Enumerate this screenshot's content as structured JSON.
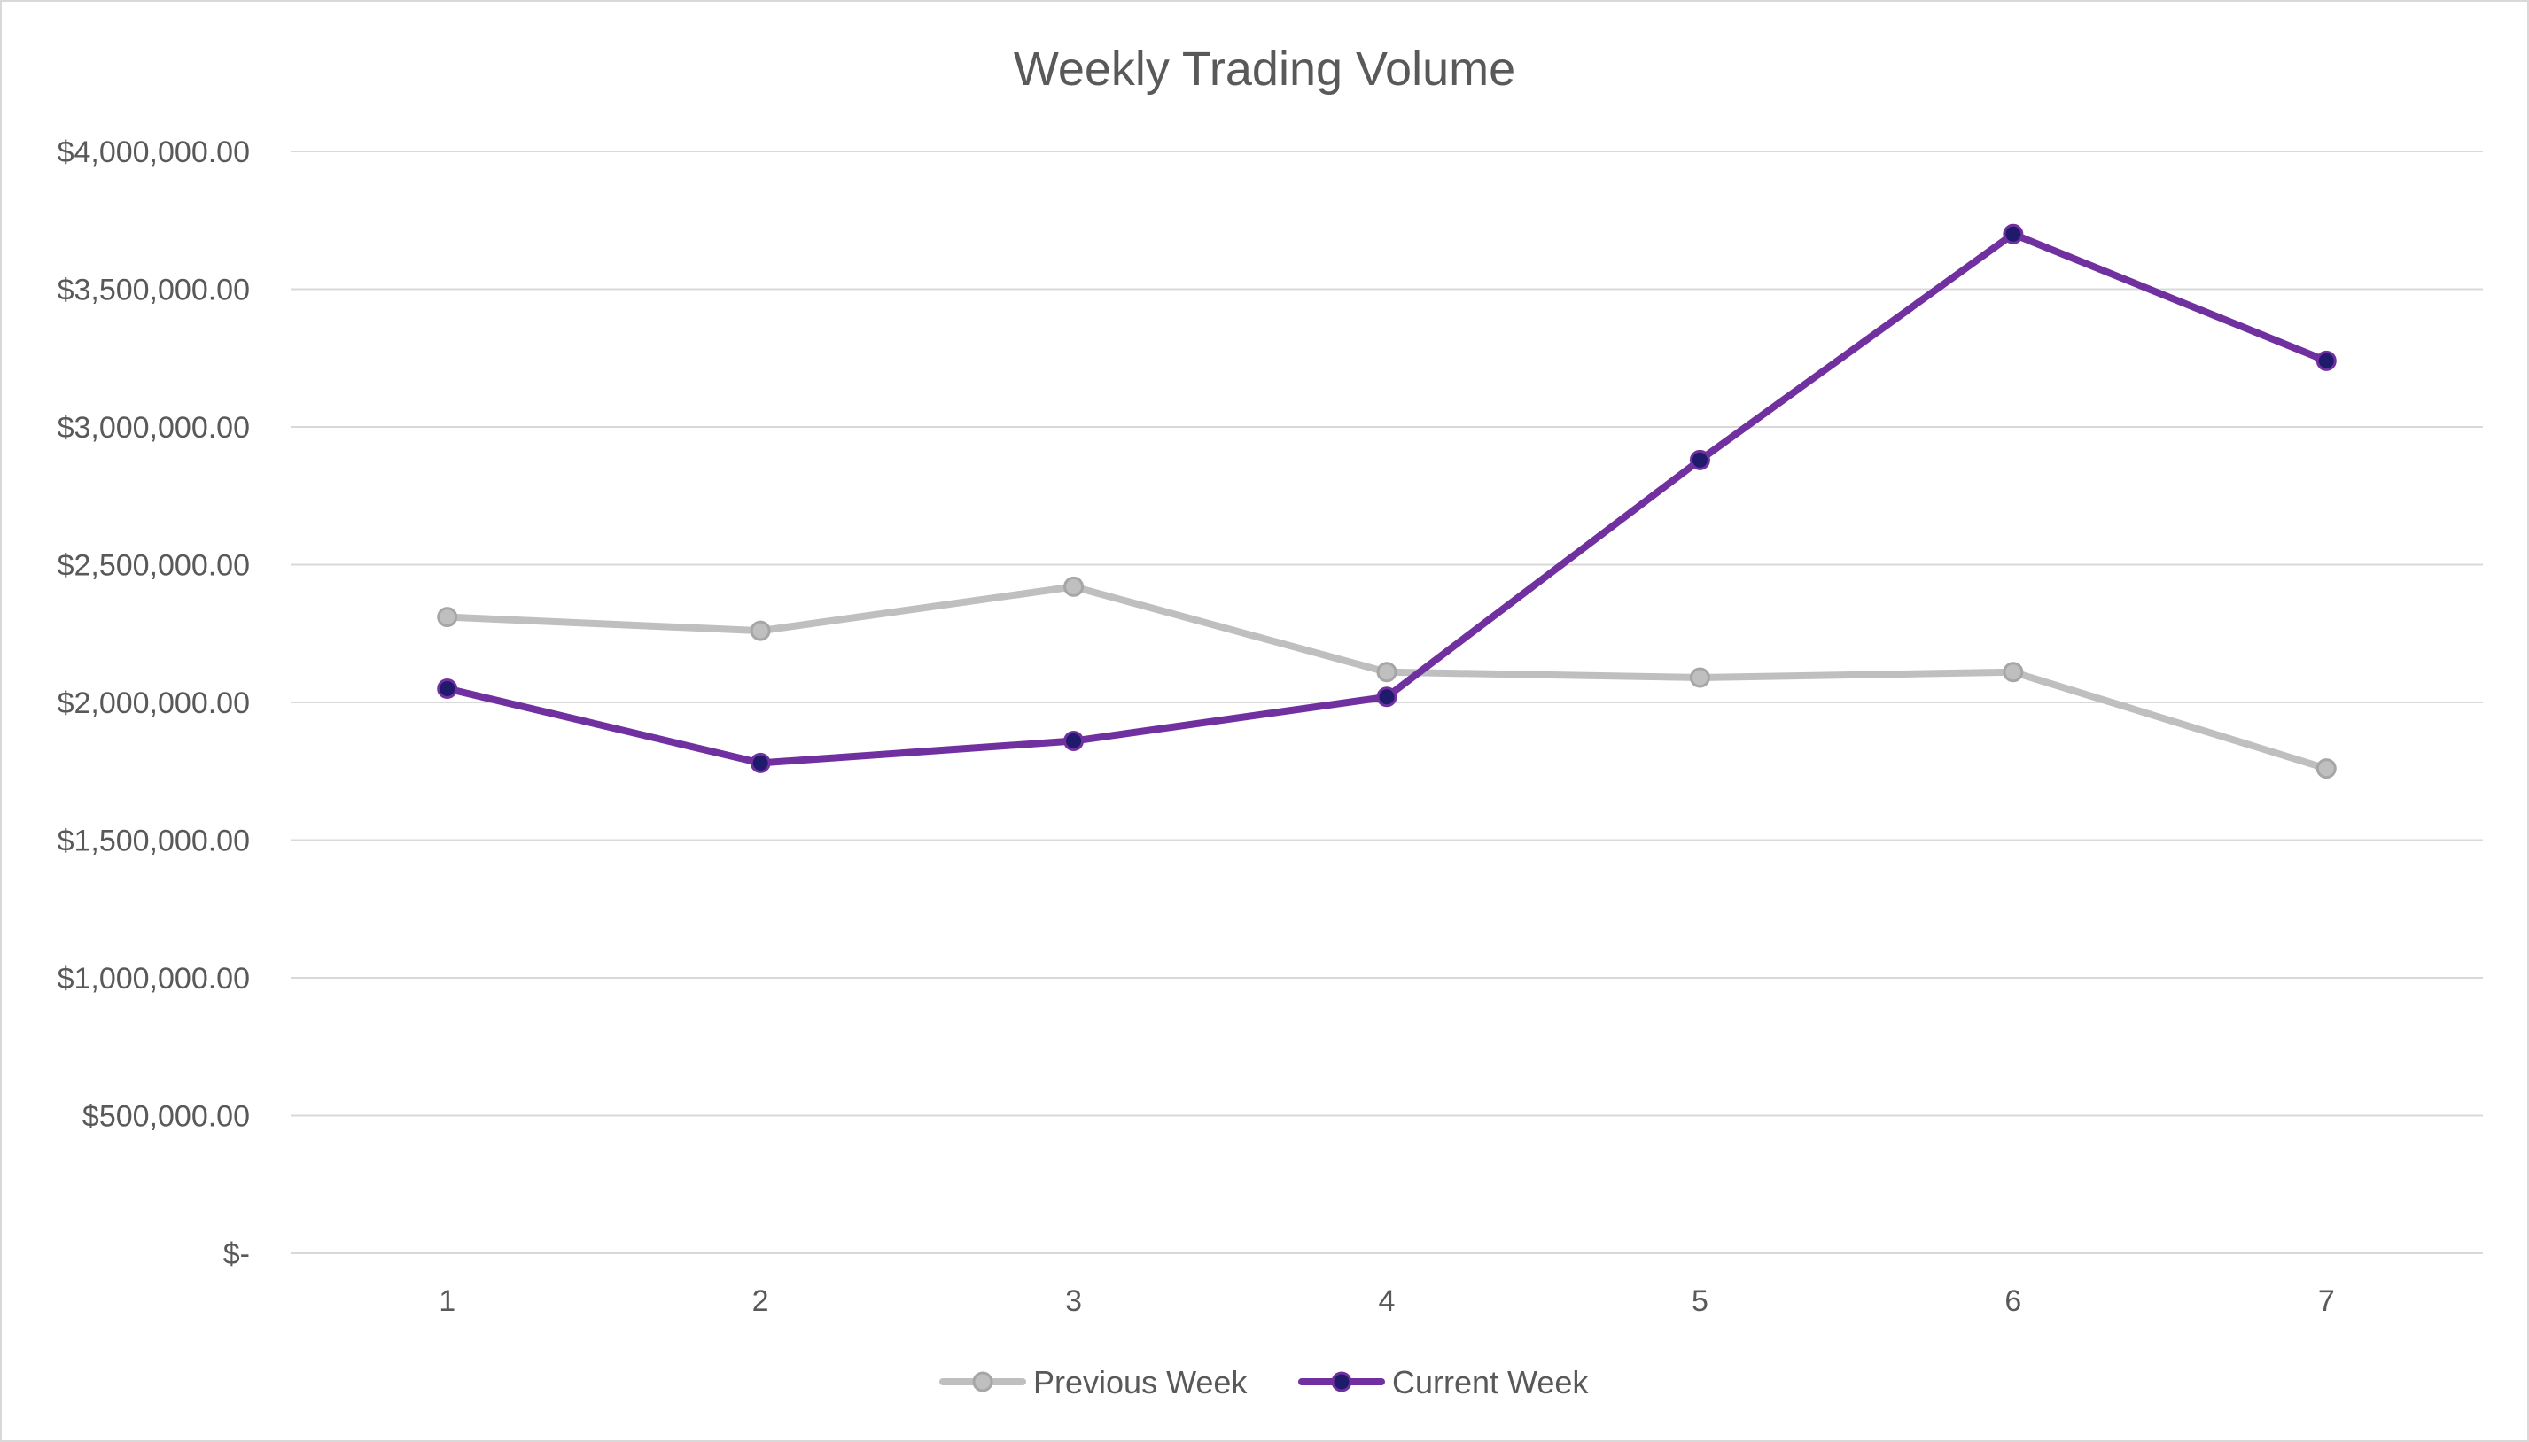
{
  "chart_data": {
    "type": "line",
    "title": "Weekly Trading Volume",
    "xlabel": "",
    "ylabel": "",
    "categories": [
      "1",
      "2",
      "3",
      "4",
      "5",
      "6",
      "7"
    ],
    "y_ticks": [
      0,
      500000,
      1000000,
      1500000,
      2000000,
      2500000,
      3000000,
      3500000,
      4000000
    ],
    "y_tick_labels": [
      "$-",
      "$500,000.00",
      "$1,000,000.00",
      "$1,500,000.00",
      "$2,000,000.00",
      "$2,500,000.00",
      "$3,000,000.00",
      "$3,500,000.00",
      "$4,000,000.00"
    ],
    "ylim": [
      0,
      4000000
    ],
    "grid": true,
    "legend_position": "bottom",
    "series": [
      {
        "name": "Previous Week",
        "color": "#bfbfbf",
        "marker_fill": "#bfbfbf",
        "marker_stroke": "#a6a6a6",
        "values": [
          2310000,
          2260000,
          2420000,
          2110000,
          2090000,
          2110000,
          1760000
        ]
      },
      {
        "name": "Current Week",
        "color": "#7030a0",
        "marker_fill": "#1f1a6b",
        "marker_stroke": "#7030a0",
        "values": [
          2050000,
          1780000,
          1860000,
          2020000,
          2880000,
          3700000,
          3240000
        ]
      }
    ]
  }
}
